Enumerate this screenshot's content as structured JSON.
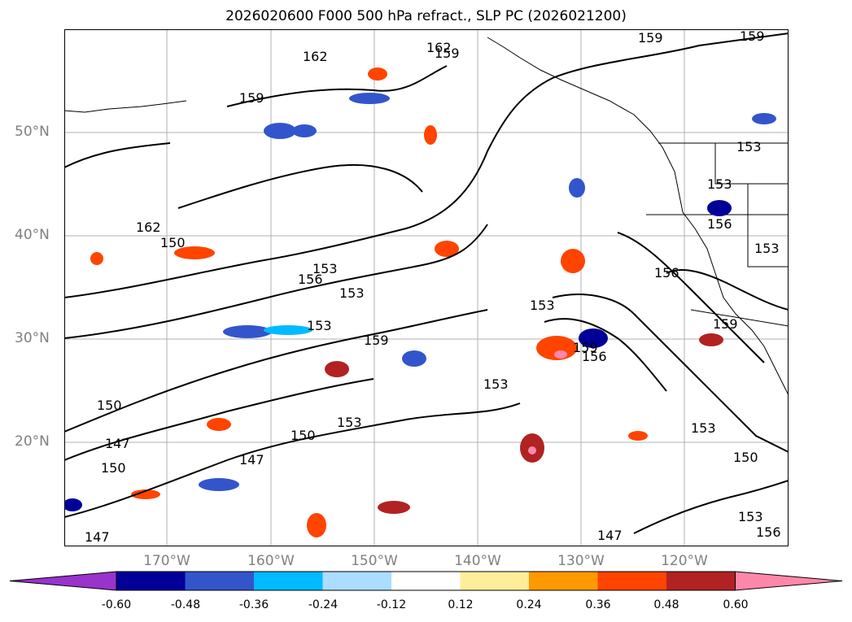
{
  "title": "2026020600 F000 500 hPa refract., SLP PC (2026021200)",
  "map": {
    "lat_labels": [
      "50°N",
      "40°N",
      "30°N",
      "20°N"
    ],
    "lon_labels": [
      "170°W",
      "160°W",
      "150°W",
      "140°W",
      "130°W",
      "120°W"
    ],
    "contour_labels": [
      "162",
      "162",
      "159",
      "159",
      "159",
      "162",
      "156",
      "153",
      "153",
      "150",
      "159",
      "153",
      "153",
      "159",
      "156",
      "153",
      "153",
      "156",
      "153",
      "150",
      "147",
      "150",
      "153",
      "147",
      "150",
      "147",
      "147",
      "153",
      "156",
      "159",
      "153",
      "150",
      "159",
      "156",
      "153"
    ],
    "grid_color": "#b0b0b0"
  },
  "colorbar": {
    "colors": [
      "#9933cc",
      "#000099",
      "#3355cc",
      "#00bbff",
      "#aaddff",
      "#ffffff",
      "#ffee99",
      "#ff9900",
      "#ff4400",
      "#b22222",
      "#ff88aa"
    ],
    "ticks": [
      "-0.60",
      "-0.48",
      "-0.36",
      "-0.24",
      "-0.12",
      "0.12",
      "0.24",
      "0.36",
      "0.48",
      "0.60"
    ]
  }
}
